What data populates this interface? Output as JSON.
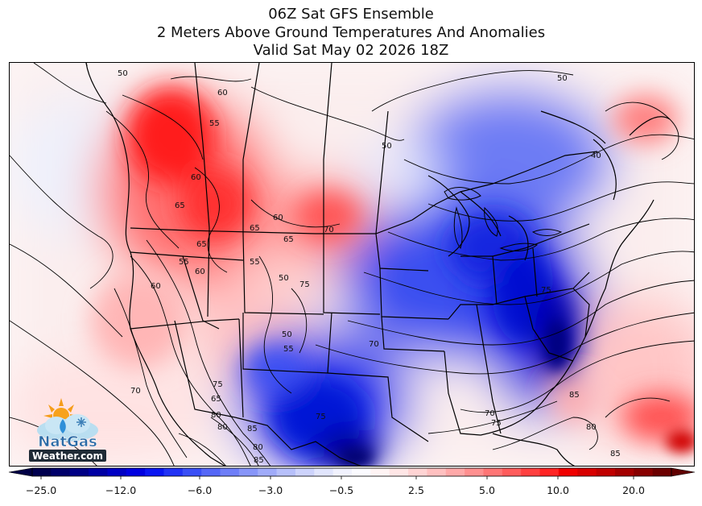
{
  "title_lines": [
    "06Z Sat GFS Ensemble",
    "2 Meters Above Ground Temperatures And Anomalies",
    "Valid Sat May 02 2026 18Z"
  ],
  "contour_labels": [
    "50",
    "60",
    "55",
    "60",
    "65",
    "65",
    "60",
    "65",
    "70",
    "65",
    "55",
    "55",
    "50",
    "60",
    "60",
    "75",
    "50",
    "50",
    "70",
    "50",
    "40",
    "55",
    "75",
    "65",
    "70",
    "80",
    "85",
    "80",
    "70",
    "75",
    "85",
    "75",
    "80",
    "80",
    "85",
    "85",
    "75"
  ],
  "logo": {
    "line1": "NatGas",
    "line2": "Weather.com"
  },
  "colorbar": {
    "tick_labels": [
      "−25.0",
      "−12.0",
      "−6.0",
      "−3.0",
      "−0.5",
      "2.5",
      "5.0",
      "10.0",
      "20.0"
    ],
    "colors": [
      "#00004f",
      "#00006a",
      "#000085",
      "#0000a4",
      "#0000c4",
      "#0000e0",
      "#0a16f2",
      "#2233f5",
      "#3a4ff6",
      "#5567f7",
      "#6e7ef8",
      "#8795f9",
      "#a0abfa",
      "#b7c0fb",
      "#cdd3fc",
      "#e1e5fd",
      "#f1f2fe",
      "#fbfbff",
      "#fff4f4",
      "#ffe6e6",
      "#ffd4d4",
      "#ffc0c0",
      "#ffa9a9",
      "#ff9090",
      "#ff7676",
      "#ff5c5c",
      "#ff4040",
      "#ff2424",
      "#f00000",
      "#d80000",
      "#c00000",
      "#a40000",
      "#880000",
      "#6c0000"
    ],
    "low_extend_color": "#000045",
    "high_extend_color": "#600000"
  }
}
